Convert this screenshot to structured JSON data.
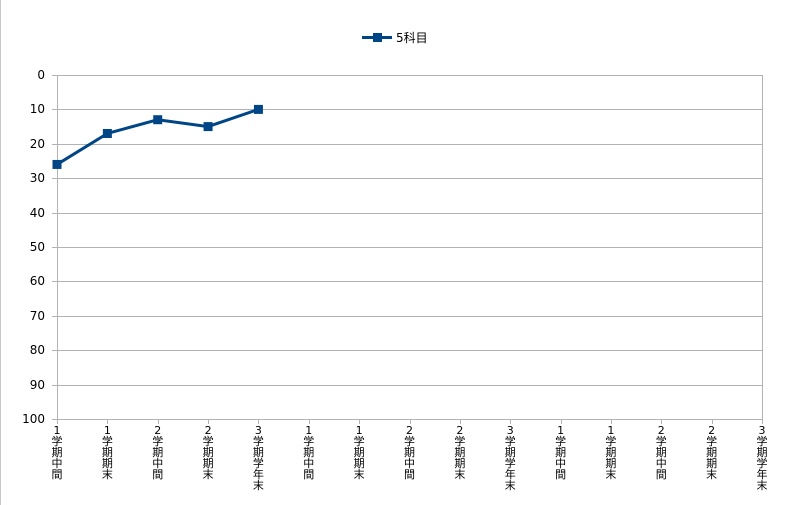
{
  "chart_data": {
    "type": "line",
    "title": "",
    "xlabel": "",
    "ylabel": "",
    "categories": [
      "1学期中間",
      "1学期期末",
      "2学期中間",
      "2学期期末",
      "3学期学年末",
      "1学期中間",
      "1学期期末",
      "2学期中間",
      "2学期期末",
      "3学期学年末",
      "1学期中間",
      "1学期期末",
      "2学期中間",
      "2学期期末",
      "3学期学年末"
    ],
    "series": [
      {
        "name": "5科目",
        "values": [
          26,
          17,
          13,
          15,
          10,
          null,
          null,
          null,
          null,
          null,
          null,
          null,
          null,
          null,
          null
        ]
      }
    ],
    "ylim": [
      0,
      100
    ],
    "yticks": [
      "0",
      "10",
      "20",
      "30",
      "40",
      "50",
      "60",
      "70",
      "80",
      "90",
      "100"
    ],
    "y_inverted": true,
    "grid": true,
    "legend": "top-center",
    "colors": {
      "series": "#004586",
      "grid": "#b3b3b3"
    }
  }
}
